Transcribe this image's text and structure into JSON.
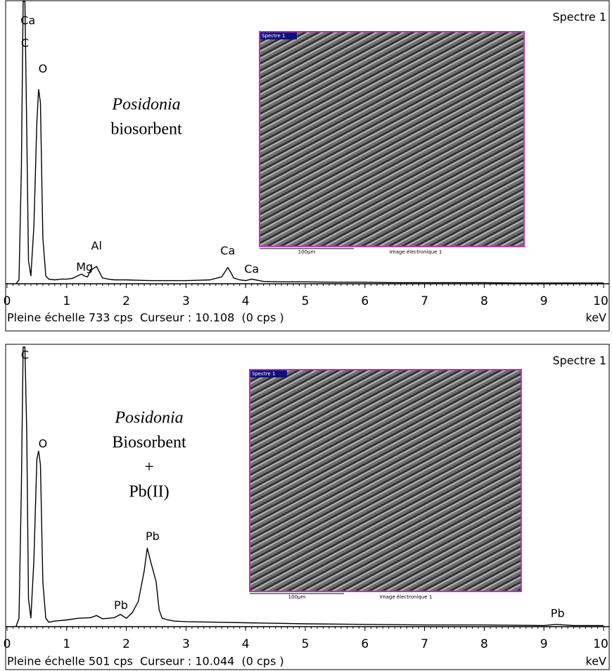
{
  "chart_data": [
    {
      "type": "line",
      "title": "Spectre 1",
      "footer": "Pleine échelle 733 cps  Curseur : 10.108  (0 cps )",
      "x_label": "keV",
      "x": [
        0.15,
        0.2,
        0.24,
        0.27,
        0.3,
        0.33,
        0.36,
        0.4,
        0.45,
        0.5,
        0.53,
        0.56,
        0.6,
        0.65,
        0.7,
        0.8,
        0.9,
        1.0,
        1.1,
        1.2,
        1.25,
        1.3,
        1.35,
        1.4,
        1.45,
        1.5,
        1.55,
        1.6,
        1.7,
        1.8,
        2.0,
        2.2,
        2.4,
        2.6,
        2.8,
        3.0,
        3.2,
        3.4,
        3.6,
        3.65,
        3.7,
        3.75,
        3.8,
        3.9,
        4.0,
        4.1,
        4.3,
        4.6,
        5.0,
        5.5,
        6.0,
        6.5,
        7.0,
        7.5,
        8.0,
        8.5,
        9.0,
        9.5,
        10
      ],
      "values": [
        0,
        10,
        300,
        733,
        733,
        400,
        60,
        20,
        150,
        420,
        505,
        470,
        120,
        20,
        12,
        10,
        12,
        12,
        14,
        22,
        25,
        20,
        18,
        35,
        40,
        45,
        30,
        15,
        12,
        10,
        10,
        9,
        8,
        8,
        8,
        8,
        9,
        10,
        18,
        30,
        42,
        30,
        15,
        10,
        8,
        12,
        6,
        5,
        5,
        4,
        4,
        3,
        3,
        3,
        3,
        2,
        2,
        2,
        2
      ],
      "color": "#000000",
      "xlim": [
        0,
        10
      ],
      "xticks": [
        0,
        1,
        2,
        3,
        4,
        5,
        6,
        7,
        8,
        9,
        10
      ],
      "ylim": [
        0,
        733
      ],
      "annotations": [
        {
          "text": "Ca",
          "x": 0.35,
          "y": 682
        },
        {
          "text": "C",
          "x": 0.3,
          "y": 623
        },
        {
          "text": "O",
          "x": 0.6,
          "y": 557
        },
        {
          "text": "Al",
          "x": 1.5,
          "y": 97
        },
        {
          "text": "Mg",
          "x": 1.3,
          "y": 42
        },
        {
          "text": "Ca",
          "x": 3.7,
          "y": 84
        },
        {
          "text": "Ca",
          "x": 4.1,
          "y": 37
        }
      ],
      "sample_label": {
        "italic": "Posidonia",
        "lines": [
          "biosorbent"
        ]
      },
      "inset": {
        "title": "Spectre 1",
        "scale": "100µm",
        "caption": "Image électronique 1"
      }
    },
    {
      "type": "line",
      "title": "Spectre 1",
      "footer": "Pleine échelle 501 cps  Curseur : 10.044  (0 cps )",
      "x_label": "keV",
      "x": [
        0.15,
        0.2,
        0.24,
        0.27,
        0.3,
        0.33,
        0.36,
        0.4,
        0.45,
        0.5,
        0.53,
        0.56,
        0.6,
        0.65,
        0.7,
        0.8,
        1.0,
        1.2,
        1.4,
        1.5,
        1.6,
        1.8,
        1.9,
        2.0,
        2.1,
        2.2,
        2.3,
        2.35,
        2.4,
        2.45,
        2.5,
        2.55,
        2.6,
        2.7,
        2.8,
        3.0,
        3.5,
        4.0,
        4.5,
        5.0,
        6.0,
        7.0,
        8.0,
        9.0,
        9.2,
        9.5,
        10
      ],
      "values": [
        0,
        15,
        250,
        501,
        501,
        350,
        50,
        15,
        120,
        300,
        315,
        290,
        80,
        15,
        8,
        10,
        12,
        15,
        16,
        20,
        14,
        16,
        22,
        15,
        25,
        45,
        100,
        141,
        120,
        100,
        80,
        30,
        15,
        12,
        10,
        9,
        8,
        7,
        6,
        5,
        4,
        3,
        3,
        2,
        4,
        2,
        2
      ],
      "color": "#000000",
      "xlim": [
        0,
        10
      ],
      "xticks": [
        0,
        1,
        2,
        3,
        4,
        5,
        6,
        7,
        8,
        9,
        10
      ],
      "ylim": [
        0,
        501
      ],
      "annotations": [
        {
          "text": "C",
          "x": 0.3,
          "y": 486
        },
        {
          "text": "O",
          "x": 0.6,
          "y": 327
        },
        {
          "text": "Pb",
          "x": 2.44,
          "y": 161
        },
        {
          "text": "Pb",
          "x": 1.91,
          "y": 37
        },
        {
          "text": "Pb",
          "x": 9.23,
          "y": 23
        }
      ],
      "sample_label": {
        "italic": "Posidonia",
        "lines": [
          "Biosorbent",
          "+",
          "Pb(II)"
        ]
      },
      "inset": {
        "title": "Spectre 1",
        "scale": "100µm",
        "caption": "Image électronique 1"
      }
    }
  ]
}
